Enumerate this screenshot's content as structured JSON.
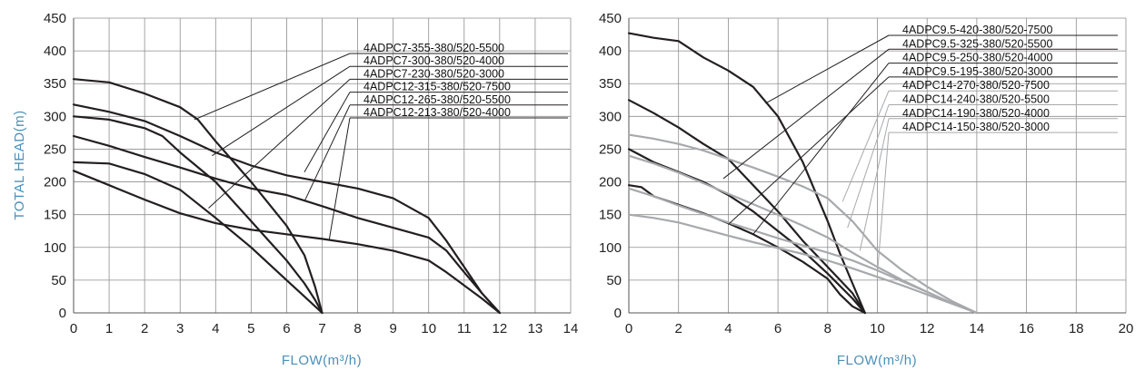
{
  "chart_data": [
    {
      "type": "line",
      "xlabel": "FLOW(m³/h)",
      "ylabel": "TOTAL HEAD(m)",
      "xlim": [
        0,
        14
      ],
      "ylim": [
        0,
        450
      ],
      "xticks": [
        0,
        1,
        2,
        3,
        4,
        5,
        6,
        7,
        8,
        9,
        10,
        11,
        12,
        13,
        14
      ],
      "yticks": [
        0,
        50,
        100,
        150,
        200,
        250,
        300,
        350,
        400,
        450
      ],
      "grid": true,
      "series": [
        {
          "name": "4ADPC7-355-380/520-5500",
          "color": "#231f20",
          "points": [
            [
              0,
              357
            ],
            [
              1,
              352
            ],
            [
              2,
              335
            ],
            [
              3,
              314
            ],
            [
              3.5,
              295
            ],
            [
              4,
              262
            ],
            [
              5,
              200
            ],
            [
              6,
              133
            ],
            [
              6.5,
              88
            ],
            [
              6.8,
              40
            ],
            [
              7,
              0
            ]
          ]
        },
        {
          "name": "4ADPC7-300-380/520-4000",
          "color": "#231f20",
          "points": [
            [
              0,
              300
            ],
            [
              1,
              295
            ],
            [
              2,
              282
            ],
            [
              2.5,
              270
            ],
            [
              3,
              245
            ],
            [
              4,
              200
            ],
            [
              5,
              140
            ],
            [
              5.5,
              110
            ],
            [
              6,
              80
            ],
            [
              6.5,
              45
            ],
            [
              6.8,
              20
            ],
            [
              7,
              0
            ]
          ]
        },
        {
          "name": "4ADPC7-230-380/520-3000",
          "color": "#231f20",
          "points": [
            [
              0,
              230
            ],
            [
              1,
              228
            ],
            [
              2,
              212
            ],
            [
              3,
              188
            ],
            [
              4,
              145
            ],
            [
              5,
              100
            ],
            [
              6,
              50
            ],
            [
              6.5,
              25
            ],
            [
              7,
              0
            ]
          ]
        },
        {
          "name": "4ADPC12-315-380/520-7500",
          "color": "#231f20",
          "points": [
            [
              0,
              318
            ],
            [
              1,
              307
            ],
            [
              2,
              293
            ],
            [
              3,
              270
            ],
            [
              4,
              245
            ],
            [
              5,
              225
            ],
            [
              6,
              210
            ],
            [
              7,
              200
            ],
            [
              8,
              190
            ],
            [
              9,
              175
            ],
            [
              10,
              145
            ],
            [
              10.5,
              110
            ],
            [
              11,
              70
            ],
            [
              11.5,
              30
            ],
            [
              12,
              0
            ]
          ]
        },
        {
          "name": "4ADPC12-265-380/520-5500",
          "color": "#231f20",
          "points": [
            [
              0,
              270
            ],
            [
              1,
              255
            ],
            [
              2,
              238
            ],
            [
              3,
              222
            ],
            [
              4,
              205
            ],
            [
              5,
              190
            ],
            [
              6,
              180
            ],
            [
              7,
              163
            ],
            [
              8,
              145
            ],
            [
              9,
              130
            ],
            [
              10,
              115
            ],
            [
              10.5,
              95
            ],
            [
              11,
              62
            ],
            [
              11.5,
              30
            ],
            [
              12,
              0
            ]
          ]
        },
        {
          "name": "4ADPC12-213-380/520-4000",
          "color": "#231f20",
          "points": [
            [
              0,
              217
            ],
            [
              1,
              195
            ],
            [
              2,
              173
            ],
            [
              3,
              152
            ],
            [
              4,
              137
            ],
            [
              5,
              127
            ],
            [
              6,
              120
            ],
            [
              7,
              113
            ],
            [
              8,
              105
            ],
            [
              9,
              95
            ],
            [
              10,
              80
            ],
            [
              10.5,
              62
            ],
            [
              11,
              42
            ],
            [
              11.5,
              22
            ],
            [
              12,
              0
            ]
          ]
        }
      ]
    },
    {
      "type": "line",
      "xlabel": "FLOW(m³/h)",
      "ylabel": "",
      "xlim": [
        0,
        20
      ],
      "ylim": [
        0,
        450
      ],
      "xticks": [
        0,
        2,
        4,
        6,
        8,
        10,
        12,
        14,
        16,
        18,
        20
      ],
      "yticks": [
        0,
        50,
        100,
        150,
        200,
        250,
        300,
        350,
        400,
        450
      ],
      "grid": true,
      "series": [
        {
          "name": "4ADPC9.5-420-380/520-7500",
          "color": "#231f20",
          "points": [
            [
              0,
              427
            ],
            [
              1,
              420
            ],
            [
              2,
              415
            ],
            [
              3,
              390
            ],
            [
              4,
              370
            ],
            [
              5,
              345
            ],
            [
              6,
              300
            ],
            [
              7,
              230
            ],
            [
              8,
              140
            ],
            [
              8.5,
              90
            ],
            [
              9,
              45
            ],
            [
              9.5,
              0
            ]
          ]
        },
        {
          "name": "4ADPC9.5-325-380/520-5500",
          "color": "#231f20",
          "points": [
            [
              0,
              325
            ],
            [
              1,
              305
            ],
            [
              2,
              283
            ],
            [
              3,
              258
            ],
            [
              4,
              235
            ],
            [
              5,
              195
            ],
            [
              6,
              155
            ],
            [
              7,
              110
            ],
            [
              8,
              70
            ],
            [
              9,
              30
            ],
            [
              9.5,
              0
            ]
          ]
        },
        {
          "name": "4ADPC9.5-250-380/520-4000",
          "color": "#231f20",
          "points": [
            [
              0,
              250
            ],
            [
              1,
              230
            ],
            [
              2,
              215
            ],
            [
              3,
              200
            ],
            [
              4,
              180
            ],
            [
              5,
              155
            ],
            [
              6,
              125
            ],
            [
              7,
              95
            ],
            [
              8,
              60
            ],
            [
              9,
              22
            ],
            [
              9.5,
              0
            ]
          ]
        },
        {
          "name": "4ADPC9.5-195-380/520-3000",
          "color": "#231f20",
          "points": [
            [
              0,
              195
            ],
            [
              0.5,
              192
            ],
            [
              1,
              178
            ],
            [
              2,
              165
            ],
            [
              3,
              152
            ],
            [
              4,
              137
            ],
            [
              5,
              120
            ],
            [
              6,
              100
            ],
            [
              7,
              78
            ],
            [
              8,
              52
            ],
            [
              8.5,
              28
            ],
            [
              9,
              10
            ],
            [
              9.5,
              0
            ]
          ]
        },
        {
          "name": "4ADPC14-270-380/520-7500",
          "color": "#a7a9ac",
          "points": [
            [
              0,
              272
            ],
            [
              1,
              266
            ],
            [
              2,
              258
            ],
            [
              3,
              248
            ],
            [
              4,
              235
            ],
            [
              5,
              222
            ],
            [
              6,
              208
            ],
            [
              7,
              193
            ],
            [
              8,
              175
            ],
            [
              9,
              140
            ],
            [
              10,
              95
            ],
            [
              11,
              65
            ],
            [
              12,
              40
            ],
            [
              13,
              18
            ],
            [
              14,
              0
            ]
          ]
        },
        {
          "name": "4ADPC14-240-380/520-5500",
          "color": "#a7a9ac",
          "points": [
            [
              0,
              240
            ],
            [
              1,
              228
            ],
            [
              2,
              214
            ],
            [
              3,
              198
            ],
            [
              4,
              182
            ],
            [
              5,
              166
            ],
            [
              6,
              150
            ],
            [
              7,
              133
            ],
            [
              8,
              115
            ],
            [
              9,
              92
            ],
            [
              10,
              70
            ],
            [
              11,
              50
            ],
            [
              12,
              32
            ],
            [
              13,
              15
            ],
            [
              14,
              0
            ]
          ]
        },
        {
          "name": "4ADPC14-190-380/520-4000",
          "color": "#a7a9ac",
          "points": [
            [
              0,
              190
            ],
            [
              1,
              178
            ],
            [
              2,
              164
            ],
            [
              3,
              151
            ],
            [
              4,
              138
            ],
            [
              5,
              126
            ],
            [
              6,
              114
            ],
            [
              7,
              103
            ],
            [
              8,
              92
            ],
            [
              9,
              80
            ],
            [
              10,
              65
            ],
            [
              11,
              48
            ],
            [
              12,
              32
            ],
            [
              13,
              15
            ],
            [
              14,
              0
            ]
          ]
        },
        {
          "name": "4ADPC14-150-380/520-3000",
          "color": "#a7a9ac",
          "points": [
            [
              0,
              150
            ],
            [
              1,
              145
            ],
            [
              2,
              138
            ],
            [
              3,
              128
            ],
            [
              4,
              118
            ],
            [
              5,
              108
            ],
            [
              6,
              99
            ],
            [
              7,
              90
            ],
            [
              8,
              80
            ],
            [
              9,
              68
            ],
            [
              10,
              55
            ],
            [
              11,
              42
            ],
            [
              12,
              28
            ],
            [
              13,
              14
            ],
            [
              14,
              0
            ]
          ]
        }
      ]
    }
  ]
}
